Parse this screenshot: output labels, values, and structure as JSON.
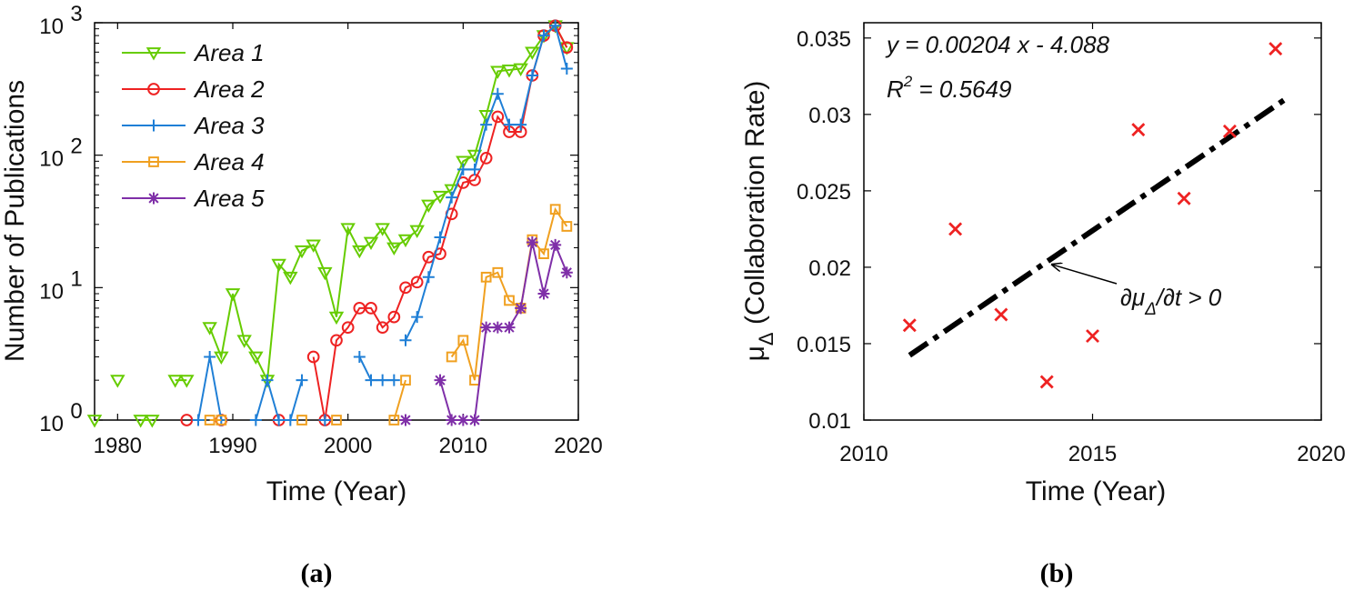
{
  "chart_data": [
    {
      "type": "line",
      "caption": "(a)",
      "xlabel": "Time (Year)",
      "ylabel": "Number of Publications",
      "xlim": [
        1978,
        2020
      ],
      "ylim": [
        1,
        1000
      ],
      "yscale": "log",
      "xticks": [
        "1980",
        "1990",
        "2000",
        "2010",
        "2020"
      ],
      "yticks": [
        {
          "value": 1,
          "base": "10",
          "exp": "0"
        },
        {
          "value": 10,
          "base": "10",
          "exp": "1"
        },
        {
          "value": 100,
          "base": "10",
          "exp": "2"
        },
        {
          "value": 1000,
          "base": "10",
          "exp": "3"
        }
      ],
      "legend_position": "top-left",
      "series": [
        {
          "name": "Area 1",
          "color": "#66cc00",
          "marker": "triangle-down",
          "segments": [
            [
              [
                1978,
                1
              ]
            ],
            [
              [
                1980,
                2
              ]
            ],
            [
              [
                1982,
                1
              ],
              [
                1983,
                1
              ]
            ],
            [
              [
                1985,
                2
              ],
              [
                1986,
                2
              ]
            ],
            [
              [
                1988,
                5
              ],
              [
                1989,
                3
              ],
              [
                1990,
                9
              ],
              [
                1991,
                4
              ],
              [
                1992,
                3
              ],
              [
                1993,
                2
              ],
              [
                1994,
                15
              ],
              [
                1995,
                12
              ],
              [
                1996,
                19
              ],
              [
                1997,
                21
              ],
              [
                1998,
                13
              ],
              [
                1999,
                6
              ],
              [
                2000,
                28
              ],
              [
                2001,
                19
              ],
              [
                2002,
                22
              ],
              [
                2003,
                28
              ],
              [
                2004,
                20
              ],
              [
                2005,
                23
              ],
              [
                2006,
                27
              ],
              [
                2007,
                42
              ],
              [
                2008,
                49
              ],
              [
                2009,
                55
              ],
              [
                2010,
                90
              ],
              [
                2011,
                100
              ],
              [
                2012,
                200
              ],
              [
                2013,
                430
              ],
              [
                2014,
                440
              ],
              [
                2015,
                450
              ],
              [
                2016,
                600
              ],
              [
                2017,
                800
              ],
              [
                2018,
                950
              ],
              [
                2019,
                650
              ]
            ]
          ]
        },
        {
          "name": "Area 2",
          "color": "#ee2222",
          "marker": "circle",
          "segments": [
            [
              [
                1986,
                1
              ]
            ],
            [
              [
                1989,
                1
              ]
            ],
            [
              [
                1994,
                1
              ]
            ],
            [
              [
                1997,
                3
              ],
              [
                1998,
                1
              ],
              [
                1999,
                4
              ],
              [
                2000,
                5
              ],
              [
                2001,
                7
              ],
              [
                2002,
                7
              ],
              [
                2003,
                5
              ],
              [
                2004,
                6
              ],
              [
                2005,
                10
              ],
              [
                2006,
                11
              ],
              [
                2007,
                17
              ],
              [
                2008,
                18
              ],
              [
                2009,
                36
              ],
              [
                2010,
                62
              ],
              [
                2011,
                65
              ],
              [
                2012,
                95
              ],
              [
                2013,
                195
              ],
              [
                2014,
                150
              ],
              [
                2015,
                150
              ],
              [
                2016,
                400
              ],
              [
                2017,
                800
              ],
              [
                2018,
                950
              ],
              [
                2019,
                650
              ]
            ]
          ]
        },
        {
          "name": "Area 3",
          "color": "#1f7fd6",
          "marker": "plus",
          "segments": [
            [
              [
                1987,
                1
              ],
              [
                1988,
                3
              ],
              [
                1989,
                1
              ]
            ],
            [
              [
                1992,
                1
              ],
              [
                1993,
                2
              ],
              [
                1994,
                1
              ],
              [
                1995,
                1
              ],
              [
                1996,
                2
              ]
            ],
            [
              [
                1998,
                1
              ]
            ],
            [
              [
                2001,
                3
              ],
              [
                2002,
                2
              ],
              [
                2003,
                2
              ],
              [
                2004,
                2
              ]
            ],
            [
              [
                2005,
                4
              ],
              [
                2006,
                6
              ],
              [
                2007,
                12
              ],
              [
                2008,
                24
              ],
              [
                2009,
                48
              ],
              [
                2010,
                78
              ],
              [
                2011,
                78
              ],
              [
                2012,
                170
              ],
              [
                2013,
                290
              ],
              [
                2014,
                170
              ],
              [
                2015,
                170
              ],
              [
                2016,
                400
              ],
              [
                2017,
                800
              ],
              [
                2018,
                950
              ],
              [
                2019,
                450
              ]
            ]
          ]
        },
        {
          "name": "Area 4",
          "color": "#f0a020",
          "marker": "square",
          "segments": [
            [
              [
                1988,
                1
              ],
              [
                1989,
                1
              ]
            ],
            [
              [
                1996,
                1
              ]
            ],
            [
              [
                1999,
                1
              ]
            ],
            [
              [
                2004,
                1
              ],
              [
                2005,
                2
              ]
            ],
            [
              [
                2009,
                3
              ],
              [
                2010,
                4
              ],
              [
                2011,
                2
              ],
              [
                2012,
                12
              ],
              [
                2013,
                13
              ],
              [
                2014,
                8
              ],
              [
                2015,
                7
              ],
              [
                2016,
                23
              ],
              [
                2017,
                18
              ],
              [
                2018,
                39
              ],
              [
                2019,
                29
              ]
            ]
          ]
        },
        {
          "name": "Area 5",
          "color": "#7f2fa8",
          "marker": "asterisk",
          "segments": [
            [
              [
                2005,
                1
              ]
            ],
            [
              [
                2008,
                2
              ],
              [
                2009,
                1
              ],
              [
                2010,
                1
              ],
              [
                2011,
                1
              ],
              [
                2012,
                5
              ],
              [
                2013,
                5
              ],
              [
                2014,
                5
              ],
              [
                2015,
                7
              ],
              [
                2016,
                22
              ],
              [
                2017,
                9
              ],
              [
                2018,
                21
              ],
              [
                2019,
                13
              ]
            ]
          ]
        }
      ]
    },
    {
      "type": "scatter",
      "caption": "(b)",
      "xlabel": "Time (Year)",
      "ylabel": {
        "symbol": "μ",
        "subscript": "Δ",
        "text": " (Collaboration Rate)"
      },
      "xlim": [
        2010,
        2020
      ],
      "ylim": [
        0.01,
        0.036
      ],
      "xticks": [
        2010,
        2015,
        2020
      ],
      "yticks": [
        "0.01",
        "0.015",
        "0.02",
        "0.025",
        "0.03",
        "0.035"
      ],
      "points": {
        "color": "#ee2222",
        "marker": "x",
        "x": [
          2011,
          2012,
          2013,
          2014,
          2015,
          2016,
          2017,
          2018,
          2019
        ],
        "y": [
          0.0162,
          0.0225,
          0.0169,
          0.0125,
          0.0155,
          0.029,
          0.0245,
          0.0289,
          0.0343
        ]
      },
      "fit_line": {
        "x": [
          2011,
          2019.3
        ],
        "y": [
          0.01424,
          0.03117
        ],
        "color": "#000000",
        "style": "dash-dot"
      },
      "equation": "y = 0.00204 x - 4.088",
      "r2": {
        "base": "R",
        "exp": "2",
        "rest": " = 0.5649"
      },
      "annotation": {
        "parts": [
          "∂μ",
          "Δ",
          "/∂t > 0"
        ],
        "arrow_target": [
          2014.05,
          0.0204
        ]
      }
    }
  ]
}
